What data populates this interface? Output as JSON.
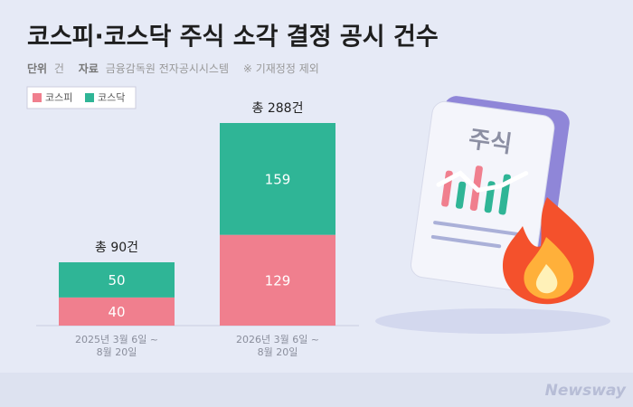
{
  "chart_data": {
    "type": "stacked_bar",
    "title": "코스피·코스닥 주식 소각 결정 공시 건수",
    "unit_label": "단위",
    "unit": "건",
    "source_label": "자료",
    "source": "금융감독원 전자공시시스템",
    "note": "※ 기재정정 제외",
    "categories": [
      "2025년 3월 6일 ~\n8월 20일",
      "2026년 3월 6일 ~\n8월 20일"
    ],
    "series": [
      {
        "name": "코스피",
        "color": "#f07f8e",
        "values": [
          40,
          129
        ]
      },
      {
        "name": "코스닥",
        "color": "#2fb596",
        "values": [
          50,
          159
        ]
      }
    ],
    "totals": [
      90,
      288
    ],
    "total_labels": [
      "총 90건",
      "총 288건"
    ],
    "illustration_text": "주식",
    "watermark": "Newsway"
  }
}
